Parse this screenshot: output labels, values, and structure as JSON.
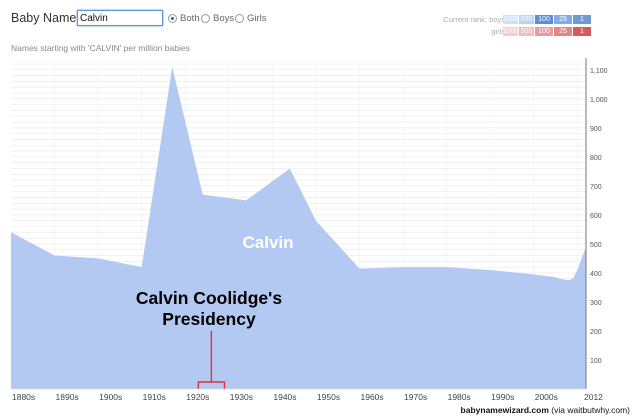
{
  "app": {
    "title": "Baby Name >"
  },
  "search": {
    "value": "Calvin"
  },
  "filters": {
    "both": "Both",
    "boys": "Boys",
    "girls": "Girls",
    "selected": "both"
  },
  "subtitle": "Names starting with 'CALVIN' per million babies",
  "rank": {
    "label": "Current rank:",
    "boys_label": "boys",
    "girls_label": "girls",
    "cells": [
      "1000",
      "500",
      "100",
      "25",
      "1"
    ],
    "boys_colors": [
      "#cfe0f5",
      "#bcd3f0",
      "#9dbde8",
      "#85ace1",
      "#6e9ad8"
    ],
    "girls_colors": [
      "#f4cfcf",
      "#efbcbc",
      "#e89d9d",
      "#e18585",
      "#d86e6e"
    ],
    "boys_active": 2,
    "girls_active": 4
  },
  "chart_data": {
    "type": "area",
    "series": [
      {
        "name": "Calvin",
        "color": "#b3c9f2",
        "x": [
          1880,
          1890,
          1900,
          1910,
          1917,
          1924,
          1934,
          1944,
          1950,
          1960,
          1970,
          1980,
          1990,
          2000,
          2005,
          2006,
          2008,
          2009,
          2010,
          2011,
          2012
        ],
        "values": [
          540,
          460,
          450,
          420,
          1110,
          670,
          650,
          760,
          580,
          415,
          420,
          420,
          410,
          395,
          385,
          380,
          375,
          380,
          410,
          450,
          490
        ]
      }
    ],
    "xticks": [
      "1880s",
      "1890s",
      "1900s",
      "1910s",
      "1920s",
      "1930s",
      "1940s",
      "1950s",
      "1960s",
      "1970s",
      "1980s",
      "1990s",
      "2000s",
      "2012"
    ],
    "yticks": [
      "100",
      "200",
      "300",
      "400",
      "500",
      "600",
      "700",
      "800",
      "900",
      "1,000",
      "1,100"
    ],
    "ylim": [
      0,
      1120
    ],
    "xlim": [
      1880,
      2012
    ],
    "grid": true,
    "annotations": {
      "series_label": "Calvin",
      "event_text_line1": "Calvin Coolidge's",
      "event_text_line2": "Presidency",
      "event_start": 1923,
      "event_end": 1929,
      "event_color": "#e03030"
    }
  },
  "credit": {
    "main": "babynamewizard.com",
    "via": "(via waitbutwhy.com)"
  }
}
